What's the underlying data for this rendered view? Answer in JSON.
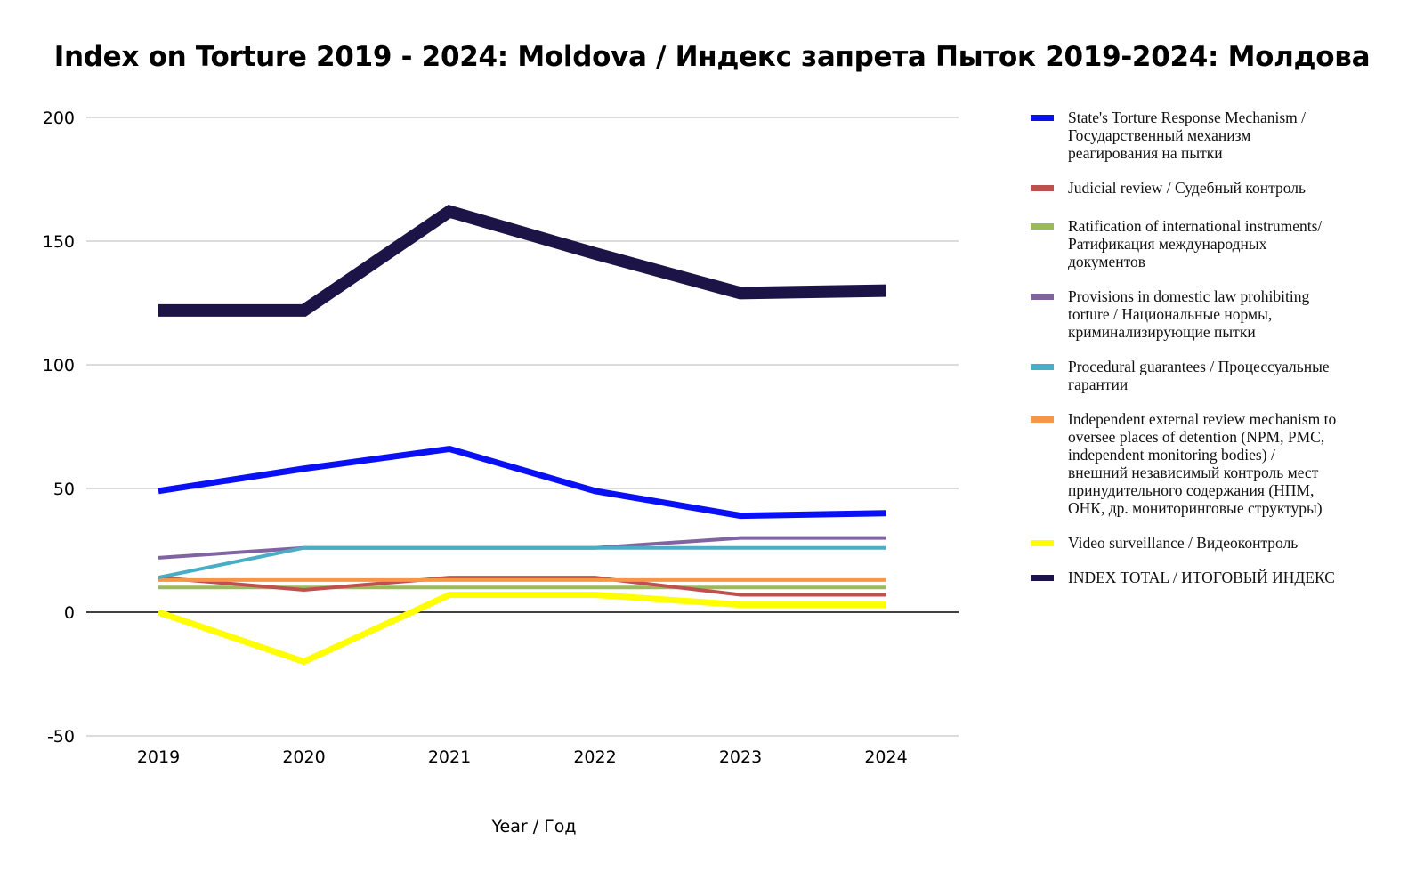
{
  "title": "Index on Torture 2019 - 2024: Moldova / Индекс запрета Пыток 2019-2024: Молдова",
  "chart_data": {
    "type": "line",
    "title": "Index on Torture 2019 - 2024: Moldova / Индекс запрета Пыток 2019-2024: Молдова",
    "xlabel": "Year / Год",
    "ylabel": "",
    "categories": [
      "2019",
      "2020",
      "2021",
      "2022",
      "2023",
      "2024"
    ],
    "ylim": [
      -50,
      200
    ],
    "yticks": [
      200,
      150,
      100,
      50,
      0,
      -50
    ],
    "grid": true,
    "legend_position": "right",
    "series": [
      {
        "name": "State's Torture Response Mechanism / Государственный механизм реагирования на пытки",
        "color": "#0a10f5",
        "values": [
          49,
          58,
          66,
          49,
          39,
          40
        ]
      },
      {
        "name": "Judicial review / Судебный контроль",
        "color": "#c0504d",
        "values": [
          14,
          9,
          14,
          14,
          7,
          7
        ]
      },
      {
        "name": "Ratification of international instruments/ Ратификация международных документов",
        "color": "#9bbb59",
        "values": [
          10,
          10,
          10,
          10,
          10,
          10
        ]
      },
      {
        "name": "Provisions in domestic law prohibiting torture / Национальные нормы, криминализирующие пытки",
        "color": "#8064a2",
        "values": [
          22,
          26,
          26,
          26,
          30,
          30
        ]
      },
      {
        "name": "Procedural guarantees / Процессуальные гарантии",
        "color": "#4bacc6",
        "values": [
          14,
          26,
          26,
          26,
          26,
          26
        ]
      },
      {
        "name": "Independent external review mechanism to oversee places of detention (NPM, PMC, independent monitoring bodies) / внешний независимый контроль мест принудительного содержания (НПМ, ОНК, др. мониторинговые структуры)",
        "color": "#f79646",
        "values": [
          13,
          13,
          13,
          13,
          13,
          13
        ]
      },
      {
        "name": "Video surveillance / Видеоконтроль",
        "color": "#ffff00",
        "values": [
          0,
          -20,
          7,
          7,
          3,
          3
        ]
      },
      {
        "name": "INDEX TOTAL /  ИТОГОВЫЙ ИНДЕКС",
        "color": "#1c1446",
        "values": [
          122,
          122,
          162,
          145,
          129,
          130
        ]
      }
    ]
  },
  "legend": {
    "items": [
      {
        "label": "State's Torture Response Mechanism /\nГосударственный механизм\nреагирования на пытки",
        "color": "#0a10f5"
      },
      {
        "label": "Judicial review / Судебный контроль",
        "color": "#c0504d"
      },
      {
        "label": "Ratification of international instruments/\nРатификация международных\nдокументов",
        "color": "#9bbb59"
      },
      {
        "label": "Provisions in domestic law prohibiting\ntorture / Национальные нормы,\nкриминализирующие пытки",
        "color": "#8064a2"
      },
      {
        "label": "Procedural guarantees / Процессуальные\nгарантии",
        "color": "#4bacc6"
      },
      {
        "label": "Independent external review mechanism to\noversee places of detention (NPM, PMC,\nindependent monitoring bodies) /\nвнешний независимый контроль мест\nпринудительного содержания (НПМ,\nОНК, др. мониторинговые структуры)",
        "color": "#f79646"
      },
      {
        "label": "Video surveillance / Видеоконтроль",
        "color": "#ffff00"
      },
      {
        "label": "INDEX TOTAL /  ИТОГОВЫЙ ИНДЕКС",
        "color": "#1c1446"
      }
    ]
  }
}
